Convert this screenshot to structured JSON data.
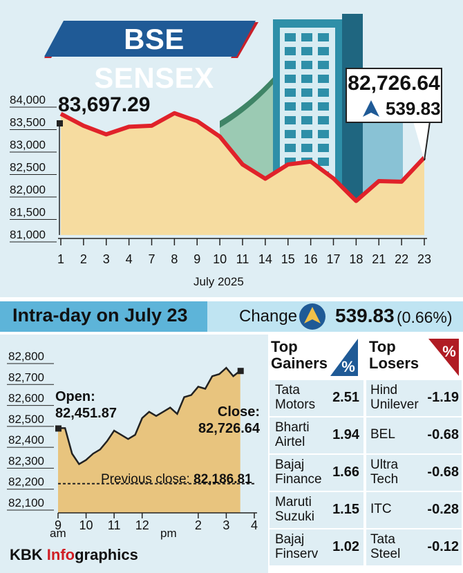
{
  "title": "BSE SENSEX",
  "main_chart": {
    "start_value": "83,697.29",
    "close_value": "82,726.64",
    "close_change": "539.83",
    "x_label": "July 2025"
  },
  "intraday": {
    "title": "Intra-day on July 23",
    "change_label": "Change",
    "change_value": "539.83",
    "change_pct": "(0.66%)",
    "open_label": "Open:",
    "open_value": "82,451.87",
    "close_label": "Close:",
    "close_value": "82,726.64",
    "prev_close_label": "Previous close:",
    "prev_close_value": "82,186.81",
    "am": "am",
    "pm": "pm"
  },
  "gainers": {
    "title_line1": "Top",
    "title_line2": "Gainers",
    "badge": "%",
    "rows": [
      {
        "name1": "Tata",
        "name2": "Motors",
        "value": "2.51"
      },
      {
        "name1": "Bharti",
        "name2": "Airtel",
        "value": "1.94"
      },
      {
        "name1": "Bajaj",
        "name2": "Finance",
        "value": "1.66"
      },
      {
        "name1": "Maruti",
        "name2": "Suzuki",
        "value": "1.15"
      },
      {
        "name1": "Bajaj",
        "name2": "Finserv",
        "value": "1.02"
      }
    ]
  },
  "losers": {
    "title_line1": "Top",
    "title_line2": "Losers",
    "badge": "%",
    "rows": [
      {
        "name1": "Hind",
        "name2": "Unilever",
        "value": "-1.19"
      },
      {
        "name1": "BEL",
        "name2": "",
        "value": "-0.68"
      },
      {
        "name1": "Ultra",
        "name2": "Tech",
        "value": "-0.68"
      },
      {
        "name1": "ITC",
        "name2": "",
        "value": "-0.28"
      },
      {
        "name1": "Tata",
        "name2": "Steel",
        "value": "-0.12"
      }
    ]
  },
  "credit": {
    "part1": "KBK ",
    "accent": "Info",
    "part2": "graphics"
  },
  "colors": {
    "line": "#e0222a",
    "area": "#f6dca0",
    "banner": "#1f5a96",
    "banner_accent": "#c8202a",
    "band": "#5db4d9",
    "gain": "#1f5a96",
    "loss": "#b01c24"
  },
  "chart_data": [
    {
      "type": "line",
      "title": "BSE SENSEX",
      "xlabel": "July 2025",
      "ylabel": "",
      "categories": [
        "1",
        "2",
        "3",
        "4",
        "7",
        "8",
        "9",
        "10",
        "11",
        "14",
        "15",
        "16",
        "17",
        "18",
        "21",
        "22",
        "23"
      ],
      "values": [
        83697.29,
        83432,
        83240,
        83410,
        83432,
        83712,
        83536,
        83190,
        82570,
        82253,
        82570,
        82635,
        82259,
        81757,
        82200,
        82187,
        82726.64
      ],
      "ylim": [
        81000,
        84000
      ],
      "yticks": [
        "84,000",
        "83,500",
        "83,000",
        "82,500",
        "82,000",
        "81,500",
        "81,000"
      ],
      "ytick_values": [
        84000,
        83500,
        83000,
        82500,
        82000,
        81500,
        81000
      ]
    },
    {
      "type": "area",
      "title": "Intra-day on July 23",
      "xlabel": "",
      "ylabel": "",
      "x": [
        9.25,
        9.5,
        9.75,
        10,
        10.25,
        10.5,
        10.75,
        11,
        11.25,
        11.5,
        11.75,
        12,
        12.25,
        12.5,
        12.75,
        13,
        13.25,
        13.5,
        13.75,
        14,
        14.25,
        14.5,
        14.75,
        15,
        15.25,
        15.5
      ],
      "values": [
        82451.87,
        82330,
        82280,
        82300,
        82330,
        82350,
        82390,
        82440,
        82420,
        82400,
        82420,
        82500,
        82530,
        82510,
        82530,
        82550,
        82520,
        82600,
        82610,
        82650,
        82640,
        82700,
        82710,
        82740,
        82700,
        82726.64
      ],
      "xticks": [
        "9",
        "10",
        "11",
        "12",
        "2",
        "3",
        "4"
      ],
      "xtick_values": [
        9,
        10,
        11,
        12,
        14,
        15,
        16
      ],
      "yticks": [
        "82,800",
        "82,700",
        "82,600",
        "82,500",
        "82,400",
        "82,300",
        "82,200",
        "82,100"
      ],
      "ytick_values": [
        82800,
        82700,
        82600,
        82500,
        82400,
        82300,
        82200,
        82100
      ],
      "ylim": [
        82100,
        82800
      ],
      "reference_line": {
        "label": "Previous close",
        "value": 82186.81
      }
    }
  ]
}
